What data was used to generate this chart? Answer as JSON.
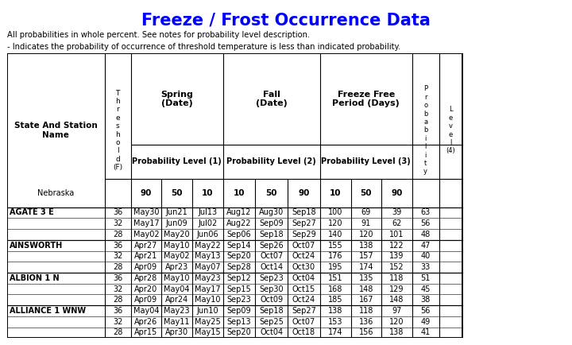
{
  "title": "Freeze / Frost Occurrence Data",
  "title_color": "#0000FF",
  "subtitle1": "All probabilities in whole percent. See notes for probability level description.",
  "subtitle2": "- Indicates the probability of occurrence of threshold temperature is less than indicated probability.",
  "bg_color": "#FFFFFF",
  "header_bg": "#FFFFFF",
  "row_bg_alt": "#FFFFFF",
  "border_color": "#000000",
  "col_headers": {
    "state_station": "State And Station\nName",
    "threshold": "T\nh\nr\ne\ns\nh\no\nl\nd\n(F)",
    "spring_main": "Spring\n(Date)",
    "spring_prob": "Probability Level (1)",
    "spring_vals": [
      "90",
      "50",
      "10"
    ],
    "fall_main": "Fall\n(Date)",
    "fall_prob": "Probability Level (2)",
    "fall_vals": [
      "10",
      "50",
      "90"
    ],
    "freeze_main": "Freeze Free\nPeriod (Days)",
    "freeze_prob": "Probability Level (3)",
    "freeze_vals": [
      "10",
      "50",
      "90"
    ],
    "prob_main": "P\nr\no\nb\na\nb\ni\nl\ni\nt\ny",
    "prob_level": "L\ne\nv\ne\nl\n(4)"
  },
  "state_row": {
    "name": "Nebraska",
    "spring_vals": [
      "90",
      "50",
      "10"
    ],
    "fall_vals": [
      "10",
      "50",
      "90"
    ],
    "freeze_vals": [
      "10",
      "50",
      "90"
    ]
  },
  "stations": [
    {
      "name": "AGATE 3 E",
      "rows": [
        {
          "thresh": "36",
          "sp90": "May30",
          "sp50": "Jun21",
          "sp10": "Jul13",
          "fa10": "Aug12",
          "fa50": "Aug30",
          "fa90": "Sep18",
          "fr10": "100",
          "fr50": "69",
          "fr90": "39",
          "prob": "63"
        },
        {
          "thresh": "32",
          "sp90": "May17",
          "sp50": "Jun09",
          "sp10": "Jul02",
          "fa10": "Aug22",
          "fa50": "Sep09",
          "fa90": "Sep27",
          "fr10": "120",
          "fr50": "91",
          "fr90": "62",
          "prob": "56"
        },
        {
          "thresh": "28",
          "sp90": "May02",
          "sp50": "May20",
          "sp10": "Jun06",
          "fa10": "Sep06",
          "fa50": "Sep18",
          "fa90": "Sep29",
          "fr10": "140",
          "fr50": "120",
          "fr90": "101",
          "prob": "48"
        }
      ]
    },
    {
      "name": "AINSWORTH",
      "rows": [
        {
          "thresh": "36",
          "sp90": "Apr27",
          "sp50": "May10",
          "sp10": "May22",
          "fa10": "Sep14",
          "fa50": "Sep26",
          "fa90": "Oct07",
          "fr10": "155",
          "fr50": "138",
          "fr90": "122",
          "prob": "47"
        },
        {
          "thresh": "32",
          "sp90": "Apr21",
          "sp50": "May02",
          "sp10": "May13",
          "fa10": "Sep20",
          "fa50": "Oct07",
          "fa90": "Oct24",
          "fr10": "176",
          "fr50": "157",
          "fr90": "139",
          "prob": "40"
        },
        {
          "thresh": "28",
          "sp90": "Apr09",
          "sp50": "Apr23",
          "sp10": "May07",
          "fa10": "Sep28",
          "fa50": "Oct14",
          "fa90": "Oct30",
          "fr10": "195",
          "fr50": "174",
          "fr90": "152",
          "prob": "33"
        }
      ]
    },
    {
      "name": "ALBION 1 N",
      "rows": [
        {
          "thresh": "36",
          "sp90": "Apr28",
          "sp50": "May10",
          "sp10": "May23",
          "fa10": "Sep12",
          "fa50": "Sep23",
          "fa90": "Oct04",
          "fr10": "151",
          "fr50": "135",
          "fr90": "118",
          "prob": "51"
        },
        {
          "thresh": "32",
          "sp90": "Apr20",
          "sp50": "May04",
          "sp10": "May17",
          "fa10": "Sep15",
          "fa50": "Sep30",
          "fa90": "Oct15",
          "fr10": "168",
          "fr50": "148",
          "fr90": "129",
          "prob": "45"
        },
        {
          "thresh": "28",
          "sp90": "Apr09",
          "sp50": "Apr24",
          "sp10": "May10",
          "fa10": "Sep23",
          "fa50": "Oct09",
          "fa90": "Oct24",
          "fr10": "185",
          "fr50": "167",
          "fr90": "148",
          "prob": "38"
        }
      ]
    },
    {
      "name": "ALLIANCE 1 WNW",
      "rows": [
        {
          "thresh": "36",
          "sp90": "May04",
          "sp50": "May23",
          "sp10": "Jun10",
          "fa10": "Sep09",
          "fa50": "Sep18",
          "fa90": "Sep27",
          "fr10": "138",
          "fr50": "118",
          "fr90": "97",
          "prob": "56"
        },
        {
          "thresh": "32",
          "sp90": "Apr26",
          "sp50": "May11",
          "sp10": "May25",
          "fa10": "Sep13",
          "fa50": "Sep25",
          "fa90": "Oct07",
          "fr10": "153",
          "fr50": "136",
          "fr90": "120",
          "prob": "49"
        },
        {
          "thresh": "28",
          "sp90": "Apr15",
          "sp50": "Apr30",
          "sp10": "May15",
          "fa10": "Sep20",
          "fa50": "Oct04",
          "fa90": "Oct18",
          "fr10": "174",
          "fr50": "156",
          "fr90": "138",
          "prob": "41"
        }
      ]
    }
  ]
}
